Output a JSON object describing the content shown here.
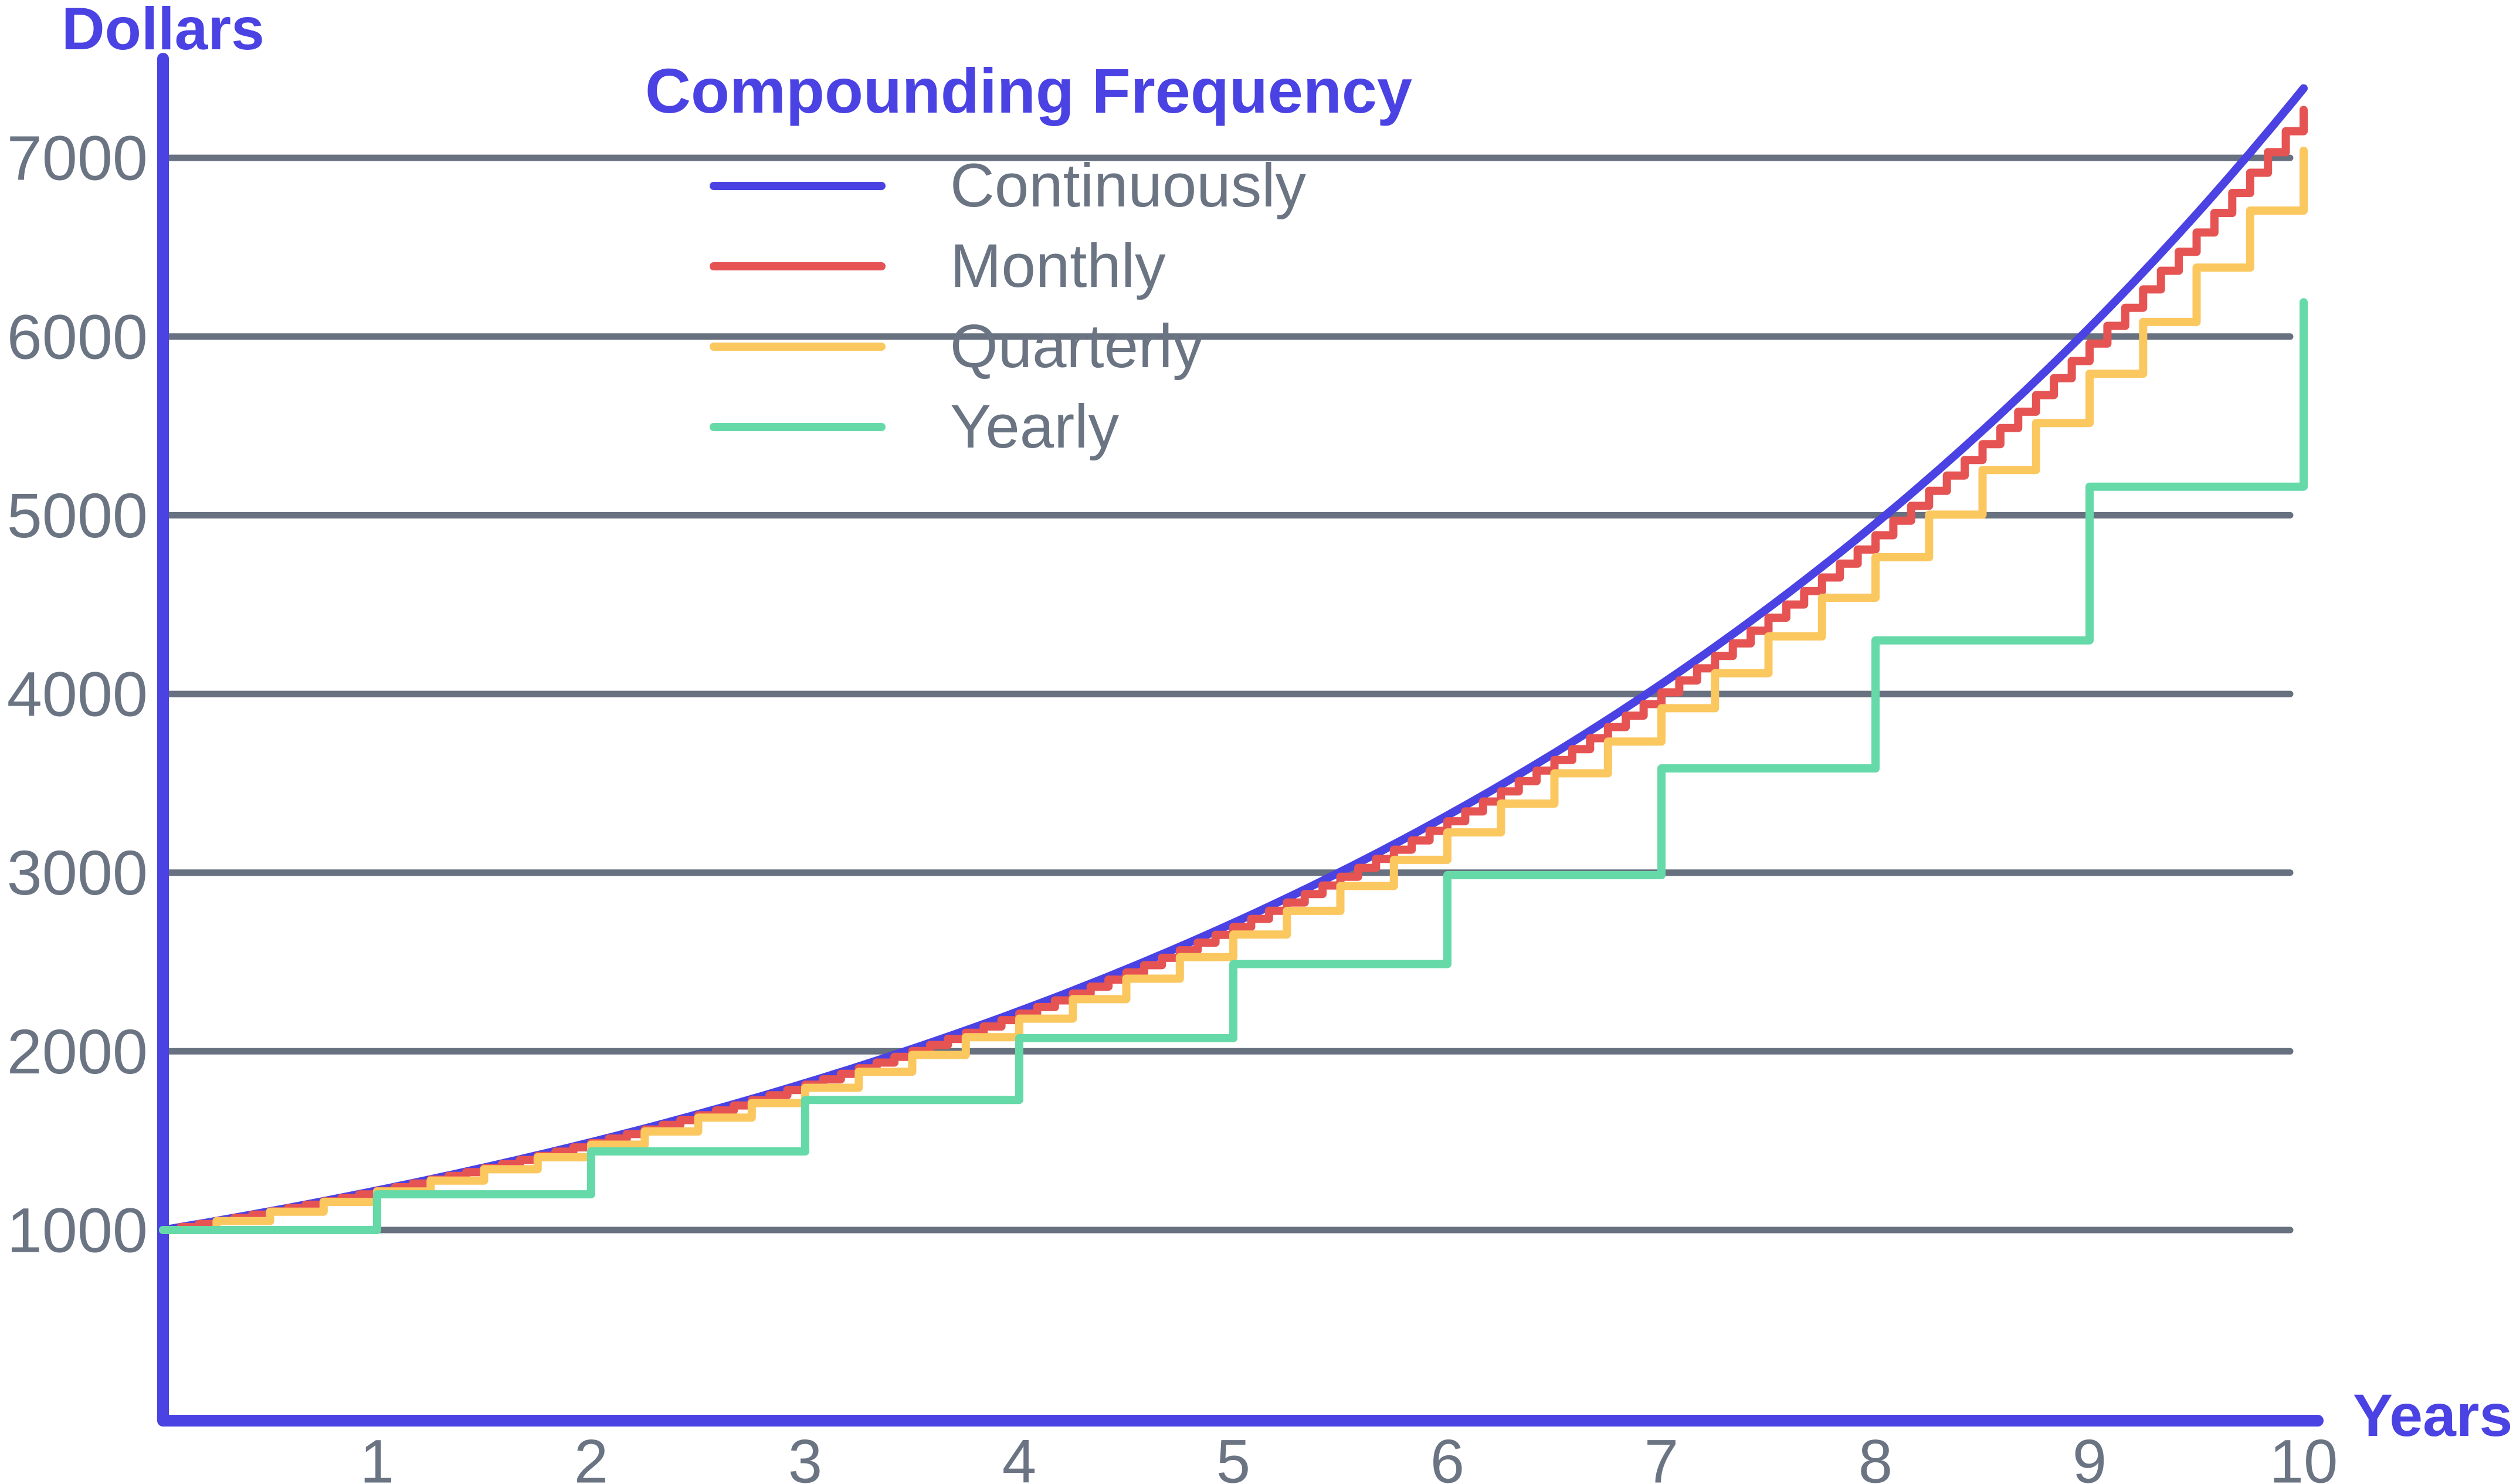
{
  "colors": {
    "axis": "#4a42e2",
    "grid": "#68717f",
    "tick_text": "#6b7482",
    "title_text": "#4a42e2",
    "legend_text": "#6b7482",
    "background": "#ffffff"
  },
  "chart_data": {
    "type": "line",
    "title": "Compounding Frequency",
    "xlabel": "Years",
    "ylabel": "Dollars",
    "principal": 1000,
    "annual_rate": 0.2,
    "xlim": [
      0,
      10
    ],
    "ylim": [
      0,
      7450
    ],
    "x_ticks": [
      1,
      2,
      3,
      4,
      5,
      6,
      7,
      8,
      9,
      10
    ],
    "y_ticks": [
      1000,
      2000,
      3000,
      4000,
      5000,
      6000,
      7000
    ],
    "grid": "horizontal",
    "legend_position": "top-center",
    "series": [
      {
        "name": "Continuously",
        "color": "#4a42e2",
        "style": "smooth-curve",
        "compounds_per_year": "continuous",
        "values_by_year": [
          1000,
          1221,
          1492,
          1822,
          2226,
          2718,
          3320,
          4055,
          4953,
          6050,
          7389
        ]
      },
      {
        "name": "Monthly",
        "color": "#e65353",
        "style": "staircase",
        "compounds_per_year": 12,
        "values_by_year": [
          1000,
          1219,
          1487,
          1813,
          2211,
          2696,
          3288,
          4009,
          4889,
          5961,
          7268
        ]
      },
      {
        "name": "Quarterly",
        "color": "#fbc75f",
        "style": "staircase",
        "compounds_per_year": 4,
        "values_by_year": [
          1000,
          1216,
          1477,
          1796,
          2183,
          2653,
          3225,
          3920,
          4765,
          5792,
          7040
        ]
      },
      {
        "name": "Yearly",
        "color": "#66d9a8",
        "style": "staircase",
        "compounds_per_year": 1,
        "values_by_year": [
          1000,
          1200,
          1440,
          1728,
          2074,
          2488,
          2986,
          3583,
          4300,
          5160,
          6192
        ]
      }
    ]
  }
}
